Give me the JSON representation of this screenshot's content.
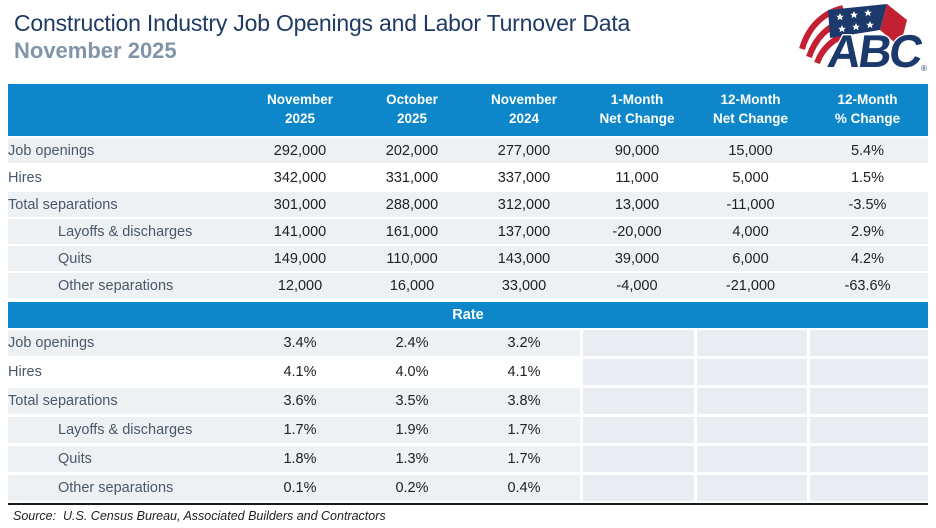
{
  "header": {
    "title": "Construction Industry Job Openings and Labor Turnover Data",
    "subtitle": "November 2025",
    "logo_text": "ABC",
    "logo_registered": "®"
  },
  "colors": {
    "accent_blue": "#0d87c9",
    "title_navy": "#1f3a63",
    "subtitle_gray": "#8194a9",
    "row_gray": "#eef1f4",
    "empty_cell_gray": "#e9edf2",
    "logo_navy": "#1b3a6b",
    "logo_red": "#c32032"
  },
  "table": {
    "column_headers": [
      "",
      "November\n2025",
      "October\n2025",
      "November\n2024",
      "1-Month\nNet Change",
      "12-Month\nNet Change",
      "12-Month\n% Change"
    ],
    "level_rows": [
      {
        "label": "Job openings",
        "indent": false,
        "shade": "gray",
        "values": [
          "292,000",
          "202,000",
          "277,000",
          "90,000",
          "15,000",
          "5.4%"
        ]
      },
      {
        "label": "Hires",
        "indent": false,
        "shade": "white",
        "values": [
          "342,000",
          "331,000",
          "337,000",
          "11,000",
          "5,000",
          "1.5%"
        ]
      },
      {
        "label": "Total separations",
        "indent": false,
        "shade": "gray",
        "values": [
          "301,000",
          "288,000",
          "312,000",
          "13,000",
          "-11,000",
          "-3.5%"
        ]
      },
      {
        "label": "Layoffs & discharges",
        "indent": true,
        "shade": "gray",
        "values": [
          "141,000",
          "161,000",
          "137,000",
          "-20,000",
          "4,000",
          "2.9%"
        ]
      },
      {
        "label": "Quits",
        "indent": true,
        "shade": "gray",
        "values": [
          "149,000",
          "110,000",
          "143,000",
          "39,000",
          "6,000",
          "4.2%"
        ]
      },
      {
        "label": "Other separations",
        "indent": true,
        "shade": "gray",
        "values": [
          "12,000",
          "16,000",
          "33,000",
          "-4,000",
          "-21,000",
          "-63.6%"
        ]
      }
    ],
    "rate_section_label": "Rate",
    "rate_rows": [
      {
        "label": "Job openings",
        "indent": false,
        "shade": "gray",
        "values": [
          "3.4%",
          "2.4%",
          "3.2%"
        ]
      },
      {
        "label": "Hires",
        "indent": false,
        "shade": "white",
        "values": [
          "4.1%",
          "4.0%",
          "4.1%"
        ]
      },
      {
        "label": "Total separations",
        "indent": false,
        "shade": "gray",
        "values": [
          "3.6%",
          "3.5%",
          "3.8%"
        ]
      },
      {
        "label": "Layoffs & discharges",
        "indent": true,
        "shade": "gray",
        "values": [
          "1.7%",
          "1.9%",
          "1.7%"
        ]
      },
      {
        "label": "Quits",
        "indent": true,
        "shade": "gray",
        "values": [
          "1.8%",
          "1.3%",
          "1.7%"
        ]
      },
      {
        "label": "Other separations",
        "indent": true,
        "shade": "gray",
        "values": [
          "0.1%",
          "0.2%",
          "0.4%"
        ]
      }
    ]
  },
  "footer": {
    "source": "Source:  U.S. Census Bureau, Associated Builders and Contractors"
  },
  "chart_data": {
    "type": "table",
    "title": "Construction Industry Job Openings and Labor Turnover Data",
    "subtitle": "November 2025",
    "columns": [
      "November 2025",
      "October 2025",
      "November 2024",
      "1-Month Net Change",
      "12-Month Net Change",
      "12-Month % Change"
    ],
    "level_section": [
      {
        "metric": "Job openings",
        "nov_2025": 292000,
        "oct_2025": 202000,
        "nov_2024": 277000,
        "net_change_1mo": 90000,
        "net_change_12mo": 15000,
        "pct_change_12mo": 5.4
      },
      {
        "metric": "Hires",
        "nov_2025": 342000,
        "oct_2025": 331000,
        "nov_2024": 337000,
        "net_change_1mo": 11000,
        "net_change_12mo": 5000,
        "pct_change_12mo": 1.5
      },
      {
        "metric": "Total separations",
        "nov_2025": 301000,
        "oct_2025": 288000,
        "nov_2024": 312000,
        "net_change_1mo": 13000,
        "net_change_12mo": -11000,
        "pct_change_12mo": -3.5
      },
      {
        "metric": "Layoffs & discharges",
        "nov_2025": 141000,
        "oct_2025": 161000,
        "nov_2024": 137000,
        "net_change_1mo": -20000,
        "net_change_12mo": 4000,
        "pct_change_12mo": 2.9
      },
      {
        "metric": "Quits",
        "nov_2025": 149000,
        "oct_2025": 110000,
        "nov_2024": 143000,
        "net_change_1mo": 39000,
        "net_change_12mo": 6000,
        "pct_change_12mo": 4.2
      },
      {
        "metric": "Other separations",
        "nov_2025": 12000,
        "oct_2025": 16000,
        "nov_2024": 33000,
        "net_change_1mo": -4000,
        "net_change_12mo": -21000,
        "pct_change_12mo": -63.6
      }
    ],
    "rate_section": [
      {
        "metric": "Job openings",
        "nov_2025": 3.4,
        "oct_2025": 2.4,
        "nov_2024": 3.2
      },
      {
        "metric": "Hires",
        "nov_2025": 4.1,
        "oct_2025": 4.0,
        "nov_2024": 4.1
      },
      {
        "metric": "Total separations",
        "nov_2025": 3.6,
        "oct_2025": 3.5,
        "nov_2024": 3.8
      },
      {
        "metric": "Layoffs & discharges",
        "nov_2025": 1.7,
        "oct_2025": 1.9,
        "nov_2024": 1.7
      },
      {
        "metric": "Quits",
        "nov_2025": 1.8,
        "oct_2025": 1.3,
        "nov_2024": 1.7
      },
      {
        "metric": "Other separations",
        "nov_2025": 0.1,
        "oct_2025": 0.2,
        "nov_2024": 0.4
      }
    ],
    "source": "U.S. Census Bureau, Associated Builders and Contractors"
  }
}
